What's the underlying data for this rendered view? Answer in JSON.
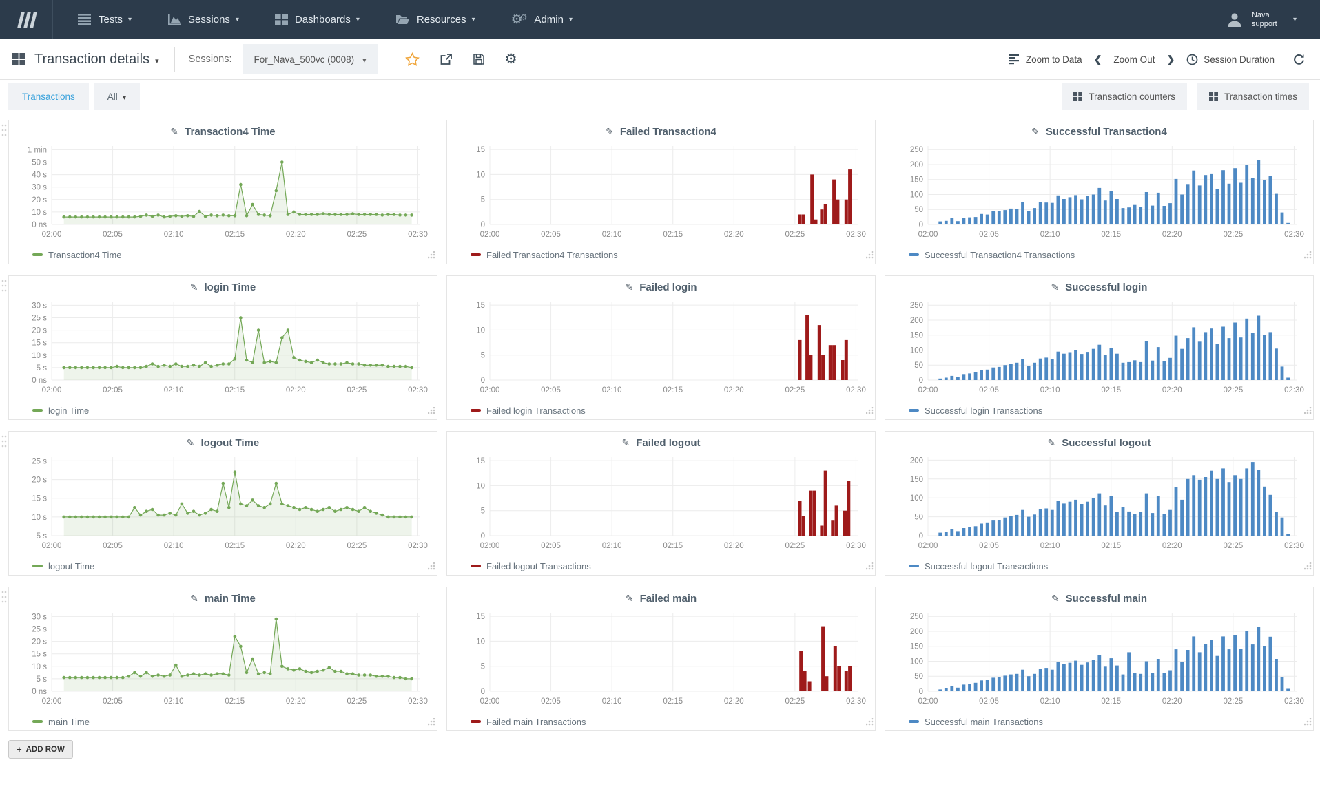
{
  "nav": {
    "items": [
      {
        "label": "Tests"
      },
      {
        "label": "Sessions"
      },
      {
        "label": "Dashboards"
      },
      {
        "label": "Resources"
      },
      {
        "label": "Admin"
      }
    ],
    "user": {
      "name": "Nava support"
    }
  },
  "header": {
    "title": "Transaction details",
    "sessions_label": "Sessions:",
    "session_value": "For_Nava_500vc (0008)",
    "zoom_to_data": "Zoom to Data",
    "zoom_out": "Zoom Out",
    "session_duration": "Session Duration"
  },
  "tabs": {
    "left": [
      {
        "label": "Transactions"
      },
      {
        "label": "All"
      }
    ],
    "right": [
      {
        "label": "Transaction counters"
      },
      {
        "label": "Transaction times"
      }
    ]
  },
  "add_row_label": "ADD ROW",
  "colors": {
    "green": "#74a857",
    "red": "#9e1a1a",
    "blue": "#4d89c4"
  },
  "xaxis": {
    "minutes": [
      0,
      5,
      10,
      15,
      20,
      25,
      30
    ],
    "labels": [
      "02:00",
      "02:05",
      "02:10",
      "02:15",
      "02:20",
      "02:25",
      "02:30"
    ],
    "xmax": 30.2
  },
  "chart_data": [
    {
      "id": "transaction4-time",
      "title": "Transaction4 Time",
      "legend": "Transaction4 Time",
      "type": "line",
      "color": "green",
      "ylim": [
        0,
        63
      ],
      "yticks": [
        [
          60,
          "1 min"
        ],
        [
          50,
          "50 s"
        ],
        [
          40,
          "40 s"
        ],
        [
          30,
          "30 s"
        ],
        [
          20,
          "20 s"
        ],
        [
          10,
          "10 s"
        ],
        [
          0,
          "0 ns"
        ]
      ],
      "x_range": [
        1,
        29.5
      ],
      "values": [
        6,
        6,
        6,
        6,
        6,
        6,
        6,
        6,
        6,
        6,
        6,
        6,
        6,
        6.5,
        7.5,
        6.5,
        7.5,
        6,
        6.5,
        7,
        6.5,
        7,
        6.5,
        10.5,
        6.5,
        7.5,
        7,
        7.5,
        7,
        7,
        32,
        7,
        16,
        8,
        7.5,
        7,
        27,
        50,
        8,
        10,
        8,
        8,
        8,
        8,
        8.5,
        8,
        8,
        8,
        8,
        8.5,
        8,
        8,
        8,
        8,
        7.5,
        8,
        8,
        7.5,
        7.5,
        7.5
      ]
    },
    {
      "id": "failed-transaction4",
      "title": "Failed Transaction4",
      "legend": "Failed Transaction4 Transactions",
      "type": "bar",
      "color": "red",
      "ylim": [
        0,
        15.7
      ],
      "yticks": [
        [
          0,
          "0"
        ],
        [
          5,
          "5"
        ],
        [
          10,
          "10"
        ],
        [
          15,
          "15"
        ]
      ],
      "points": [
        [
          25.4,
          2
        ],
        [
          25.7,
          2
        ],
        [
          26.4,
          10
        ],
        [
          26.7,
          1
        ],
        [
          27.2,
          3
        ],
        [
          27.5,
          4
        ],
        [
          28.2,
          9
        ],
        [
          28.5,
          5
        ],
        [
          29.2,
          5
        ],
        [
          29.5,
          11
        ]
      ]
    },
    {
      "id": "successful-transaction4",
      "title": "Successful Transaction4",
      "legend": "Successful Transaction4 Transactions",
      "type": "bar",
      "color": "blue",
      "ylim": [
        0,
        262
      ],
      "yticks": [
        [
          0,
          "0"
        ],
        [
          50,
          "50"
        ],
        [
          100,
          "100"
        ],
        [
          150,
          "150"
        ],
        [
          200,
          "200"
        ],
        [
          250,
          "250"
        ]
      ],
      "x_range": [
        1,
        29.5
      ],
      "values": [
        10,
        12,
        23,
        11,
        22,
        24,
        25,
        35,
        33,
        45,
        46,
        48,
        53,
        52,
        74,
        46,
        55,
        75,
        73,
        72,
        97,
        85,
        91,
        98,
        84,
        96,
        100,
        122,
        80,
        112,
        85,
        55,
        57,
        65,
        58,
        108,
        63,
        106,
        62,
        71,
        152,
        100,
        135,
        180,
        130,
        165,
        168,
        118,
        181,
        136,
        188,
        139,
        200,
        154,
        215,
        148,
        163,
        102,
        40,
        5
      ]
    },
    {
      "id": "login-time",
      "title": "login Time",
      "legend": "login Time",
      "type": "line",
      "color": "green",
      "ylim": [
        0,
        31.5
      ],
      "yticks": [
        [
          30,
          "30 s"
        ],
        [
          25,
          "25 s"
        ],
        [
          20,
          "20 s"
        ],
        [
          15,
          "15 s"
        ],
        [
          10,
          "10 s"
        ],
        [
          5,
          "5 s"
        ],
        [
          0,
          "0 ns"
        ]
      ],
      "x_range": [
        1,
        29.5
      ],
      "values": [
        5,
        5,
        5,
        5,
        5,
        5,
        5,
        5,
        5,
        5.5,
        5,
        5,
        5,
        5,
        5.5,
        6.5,
        5.5,
        6,
        5.5,
        6.5,
        5.5,
        5.5,
        6,
        5.5,
        7,
        5.5,
        6,
        6.5,
        6.5,
        8.5,
        25,
        8,
        7,
        20,
        7,
        7.5,
        7,
        17,
        20,
        9,
        8,
        7.5,
        7,
        8,
        7,
        6.5,
        6.5,
        6.5,
        7,
        6.5,
        6.5,
        6,
        6,
        6,
        6,
        5.5,
        5.5,
        5.5,
        5.5,
        5
      ]
    },
    {
      "id": "failed-login",
      "title": "Failed login",
      "legend": "Failed login Transactions",
      "type": "bar",
      "color": "red",
      "ylim": [
        0,
        15.7
      ],
      "yticks": [
        [
          0,
          "0"
        ],
        [
          5,
          "5"
        ],
        [
          10,
          "10"
        ],
        [
          15,
          "15"
        ]
      ],
      "points": [
        [
          25.4,
          8
        ],
        [
          26,
          13
        ],
        [
          26.3,
          5
        ],
        [
          27,
          11
        ],
        [
          27.3,
          5
        ],
        [
          27.9,
          7
        ],
        [
          28.2,
          7
        ],
        [
          28.9,
          4
        ],
        [
          29.2,
          8
        ]
      ]
    },
    {
      "id": "successful-login",
      "title": "Successful login",
      "legend": "Successful login Transactions",
      "type": "bar",
      "color": "blue",
      "ylim": [
        0,
        262
      ],
      "yticks": [
        [
          0,
          "0"
        ],
        [
          50,
          "50"
        ],
        [
          100,
          "100"
        ],
        [
          150,
          "150"
        ],
        [
          200,
          "200"
        ],
        [
          250,
          "250"
        ]
      ],
      "x_range": [
        1,
        29.5
      ],
      "values": [
        5,
        8,
        14,
        11,
        20,
        22,
        26,
        33,
        35,
        42,
        44,
        50,
        55,
        58,
        70,
        48,
        58,
        72,
        75,
        70,
        95,
        88,
        93,
        99,
        87,
        94,
        104,
        118,
        85,
        108,
        88,
        58,
        60,
        66,
        60,
        130,
        65,
        110,
        64,
        74,
        148,
        104,
        140,
        176,
        128,
        160,
        172,
        120,
        178,
        140,
        192,
        142,
        205,
        158,
        215,
        150,
        160,
        105,
        45,
        8
      ]
    },
    {
      "id": "logout-time",
      "title": "logout Time",
      "legend": "logout Time",
      "type": "line",
      "color": "green",
      "ylim": [
        5,
        26
      ],
      "yticks": [
        [
          25,
          "25 s"
        ],
        [
          20,
          "20 s"
        ],
        [
          15,
          "15 s"
        ],
        [
          10,
          "10 s"
        ],
        [
          5,
          "5 s"
        ]
      ],
      "x_range": [
        1,
        29.5
      ],
      "values": [
        10,
        10,
        10,
        10,
        10,
        10,
        10,
        10,
        10,
        10,
        10,
        10,
        12.5,
        10.5,
        11.5,
        12,
        10.5,
        10.5,
        11,
        10.5,
        13.5,
        11,
        11.5,
        10.5,
        11,
        12,
        11.5,
        19,
        12.5,
        22,
        13.5,
        13,
        14.5,
        13,
        12.5,
        13.5,
        19,
        13.5,
        13,
        12.5,
        12,
        12.5,
        12,
        11.5,
        12,
        12.5,
        11.5,
        12,
        12.5,
        12,
        11.5,
        12.5,
        11.5,
        11,
        10.5,
        10,
        10,
        10,
        10,
        10
      ]
    },
    {
      "id": "failed-logout",
      "title": "Failed logout",
      "legend": "Failed logout Transactions",
      "type": "bar",
      "color": "red",
      "ylim": [
        0,
        15.7
      ],
      "yticks": [
        [
          0,
          "0"
        ],
        [
          5,
          "5"
        ],
        [
          10,
          "10"
        ],
        [
          15,
          "15"
        ]
      ],
      "points": [
        [
          25.4,
          7
        ],
        [
          25.7,
          4
        ],
        [
          26.3,
          9
        ],
        [
          26.6,
          9
        ],
        [
          27.2,
          2
        ],
        [
          27.5,
          13
        ],
        [
          28.1,
          3
        ],
        [
          28.4,
          6
        ],
        [
          29.1,
          5
        ],
        [
          29.4,
          11
        ]
      ]
    },
    {
      "id": "successful-logout",
      "title": "Successful logout",
      "legend": "Successful logout Transactions",
      "type": "bar",
      "color": "blue",
      "ylim": [
        0,
        208
      ],
      "yticks": [
        [
          0,
          "0"
        ],
        [
          50,
          "50"
        ],
        [
          100,
          "100"
        ],
        [
          150,
          "150"
        ],
        [
          200,
          "200"
        ]
      ],
      "x_range": [
        1,
        29.5
      ],
      "values": [
        8,
        10,
        18,
        12,
        20,
        22,
        25,
        32,
        35,
        40,
        42,
        48,
        52,
        55,
        68,
        50,
        56,
        70,
        72,
        68,
        92,
        85,
        90,
        95,
        84,
        90,
        100,
        112,
        80,
        105,
        62,
        75,
        64,
        58,
        62,
        112,
        60,
        105,
        58,
        68,
        128,
        95,
        150,
        160,
        148,
        155,
        172,
        150,
        178,
        142,
        160,
        150,
        178,
        195,
        175,
        130,
        108,
        62,
        48,
        5
      ]
    },
    {
      "id": "main-time",
      "title": "main Time",
      "legend": "main Time",
      "type": "line",
      "color": "green",
      "ylim": [
        0,
        31.5
      ],
      "yticks": [
        [
          30,
          "30 s"
        ],
        [
          25,
          "25 s"
        ],
        [
          20,
          "20 s"
        ],
        [
          15,
          "15 s"
        ],
        [
          10,
          "10 s"
        ],
        [
          5,
          "5 s"
        ],
        [
          0,
          "0 ns"
        ]
      ],
      "x_range": [
        1,
        29.5
      ],
      "values": [
        5.5,
        5.5,
        5.5,
        5.5,
        5.5,
        5.5,
        5.5,
        5.5,
        5.5,
        5.5,
        5.5,
        6,
        7.5,
        6,
        7.5,
        6,
        6.5,
        6,
        6.5,
        10.5,
        6,
        6.5,
        7,
        6.5,
        7,
        6.5,
        7,
        7,
        6.5,
        22,
        18,
        7.5,
        13,
        7,
        7.5,
        7,
        29,
        10,
        9,
        8.5,
        9,
        8,
        7.5,
        8,
        8.5,
        9.5,
        8,
        8,
        7,
        7,
        6.5,
        6.5,
        6.5,
        6,
        6,
        6,
        5.5,
        5.5,
        5,
        5
      ]
    },
    {
      "id": "failed-main",
      "title": "Failed main",
      "legend": "Failed main Transactions",
      "type": "bar",
      "color": "red",
      "ylim": [
        0,
        15.7
      ],
      "yticks": [
        [
          0,
          "0"
        ],
        [
          5,
          "5"
        ],
        [
          10,
          "10"
        ],
        [
          15,
          "15"
        ]
      ],
      "points": [
        [
          25.5,
          8
        ],
        [
          25.8,
          4
        ],
        [
          26.2,
          2
        ],
        [
          27.3,
          13
        ],
        [
          27.6,
          3
        ],
        [
          28.3,
          9
        ],
        [
          28.6,
          5
        ],
        [
          29.2,
          4
        ],
        [
          29.5,
          5
        ]
      ]
    },
    {
      "id": "successful-main",
      "title": "Successful main",
      "legend": "Successful main Transactions",
      "type": "bar",
      "color": "blue",
      "ylim": [
        0,
        262
      ],
      "yticks": [
        [
          0,
          "0"
        ],
        [
          50,
          "50"
        ],
        [
          100,
          "100"
        ],
        [
          150,
          "150"
        ],
        [
          200,
          "200"
        ],
        [
          250,
          "250"
        ]
      ],
      "x_range": [
        1,
        29.5
      ],
      "values": [
        6,
        10,
        16,
        12,
        22,
        25,
        28,
        36,
        38,
        45,
        48,
        52,
        56,
        58,
        72,
        50,
        58,
        75,
        78,
        72,
        98,
        90,
        95,
        102,
        88,
        96,
        105,
        120,
        82,
        110,
        86,
        56,
        130,
        62,
        58,
        100,
        62,
        108,
        60,
        70,
        140,
        98,
        138,
        183,
        130,
        158,
        170,
        118,
        183,
        140,
        188,
        142,
        200,
        156,
        215,
        150,
        182,
        108,
        48,
        8
      ]
    }
  ]
}
